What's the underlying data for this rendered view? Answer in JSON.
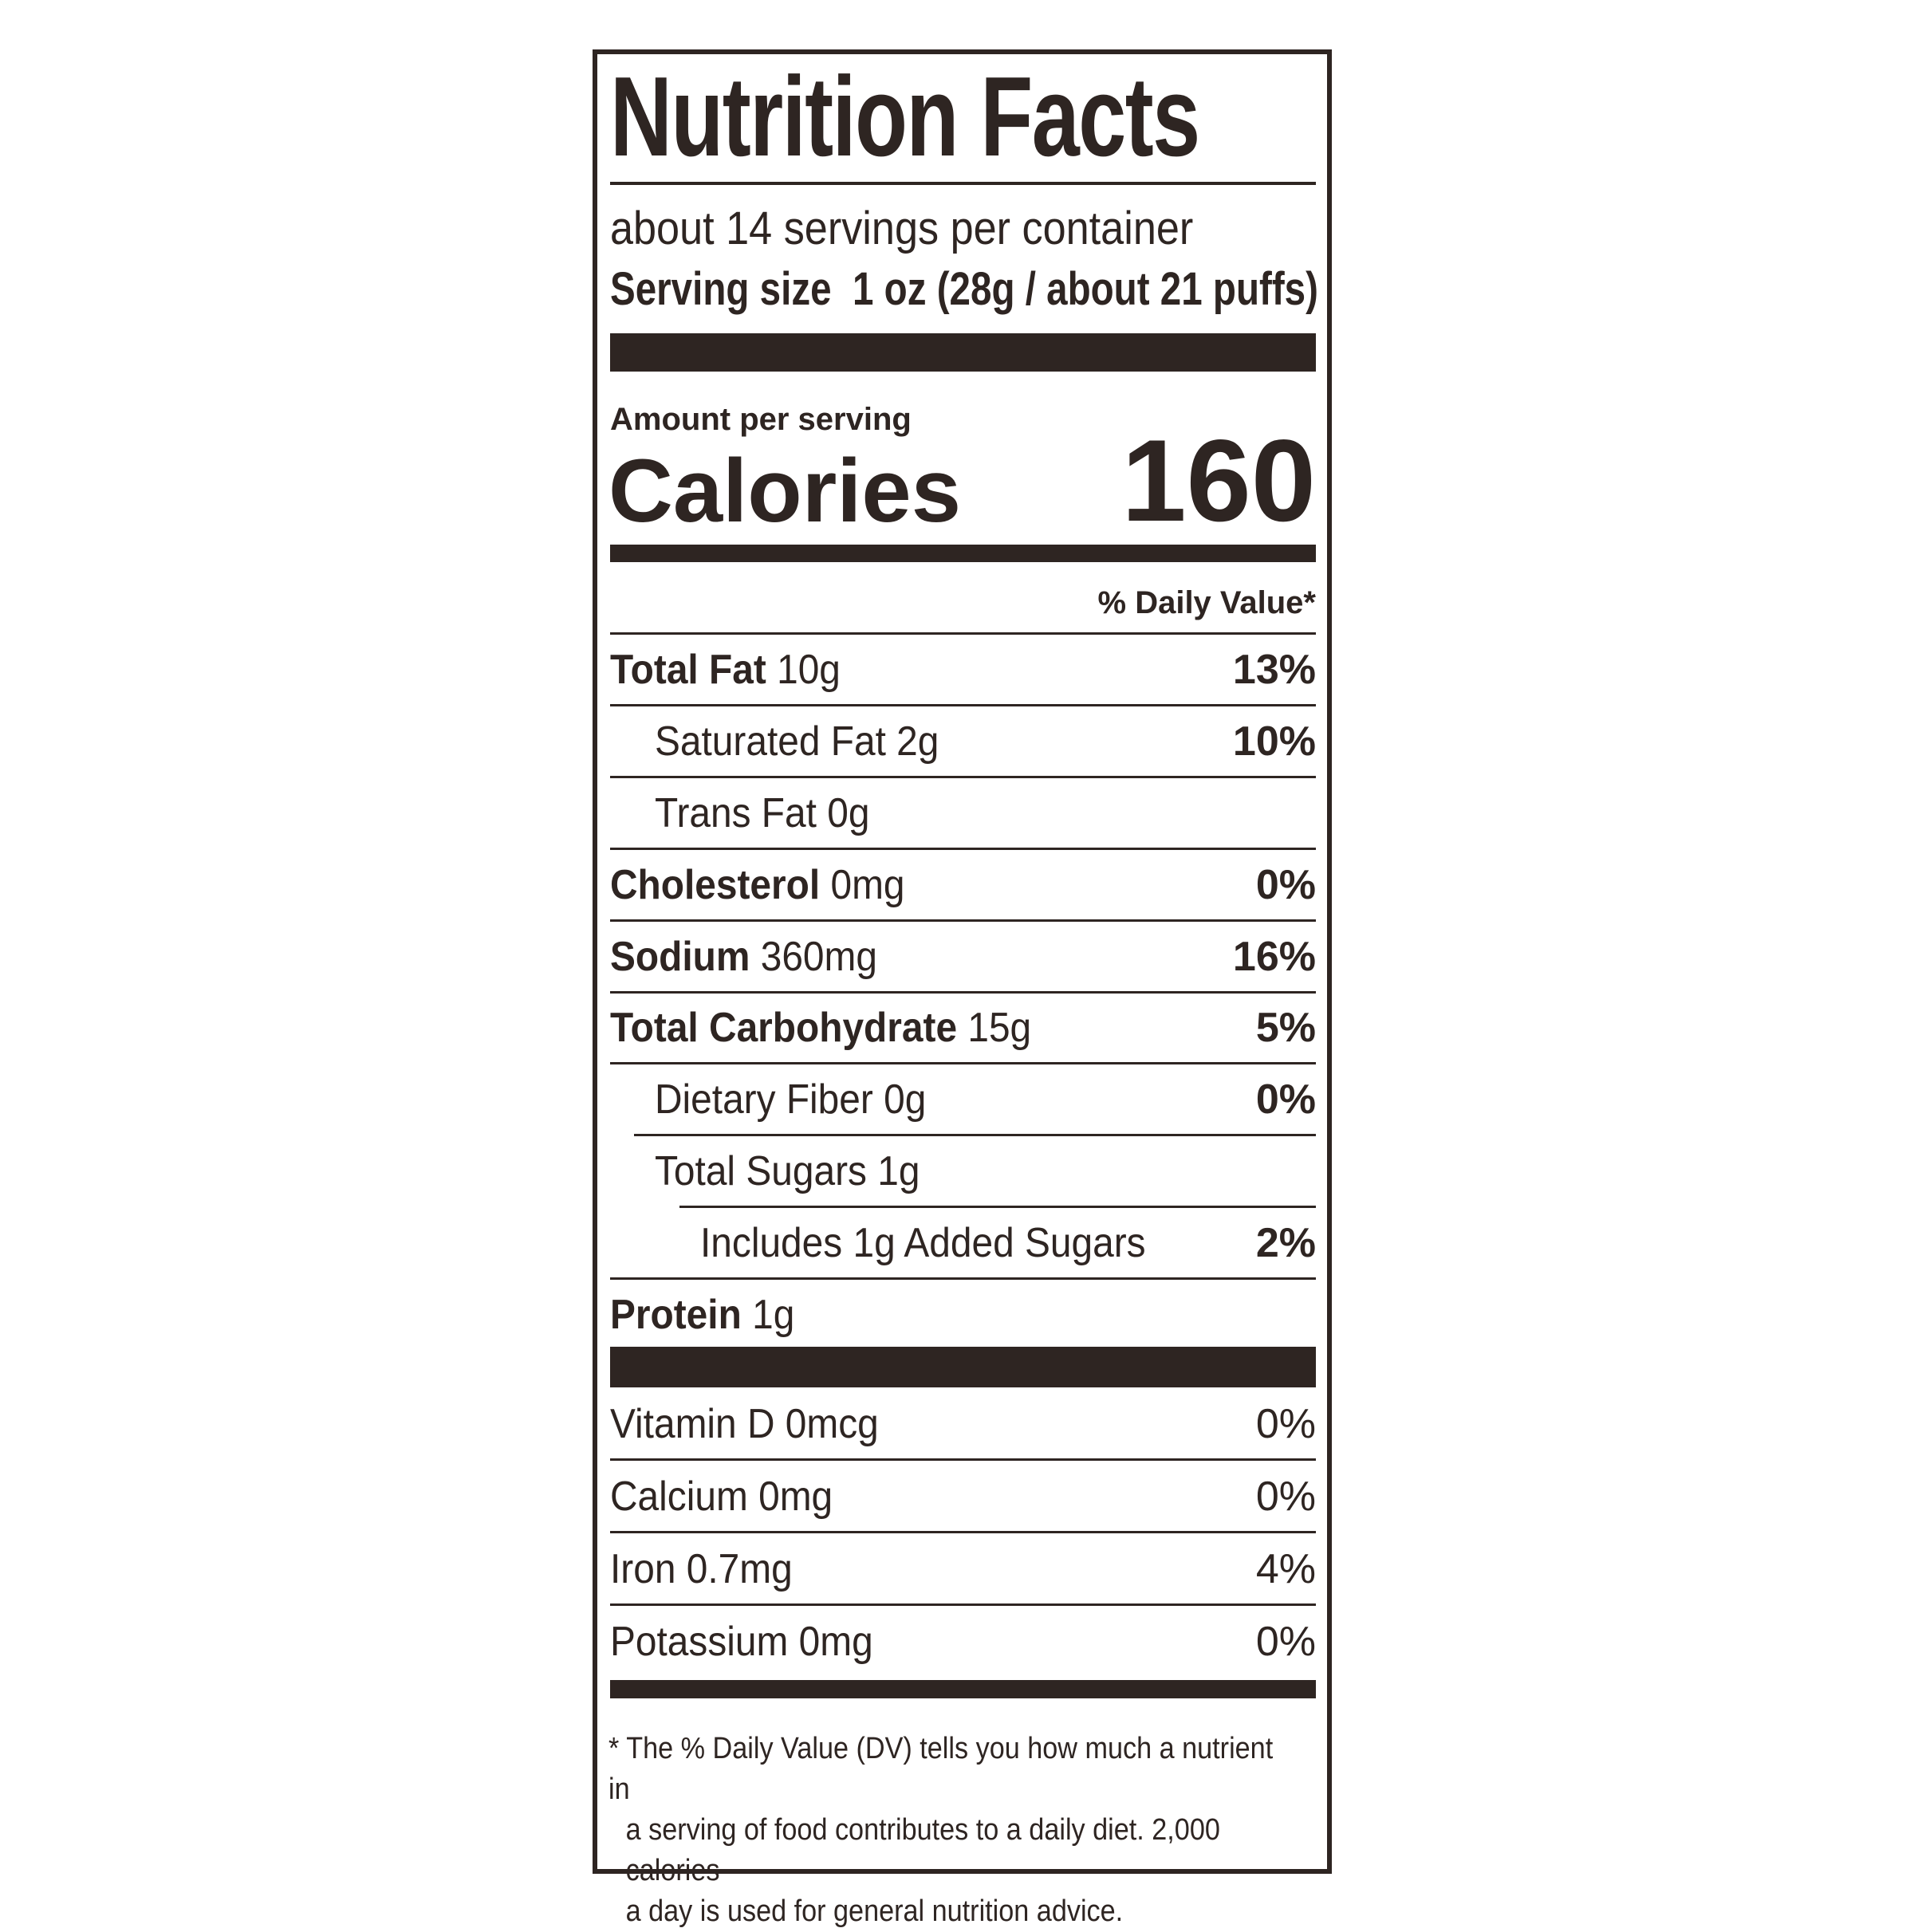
{
  "title": "Nutrition Facts",
  "servings_per_container": "about 14 servings per container",
  "serving_size_label": "Serving size",
  "serving_size_value": "1 oz (28g / about 21 puffs)",
  "amount_per_serving": "Amount per serving",
  "calories_label": "Calories",
  "calories_value": "160",
  "daily_value_header": "% Daily Value*",
  "nutrients": [
    {
      "name": "Total Fat",
      "amount": "10g",
      "dv": "13%",
      "bold": true,
      "indent": 0
    },
    {
      "name": "Saturated Fat",
      "amount": "2g",
      "dv": "10%",
      "bold": false,
      "indent": 1
    },
    {
      "name": "Trans Fat",
      "amount": "0g",
      "dv": "",
      "bold": false,
      "indent": 1
    },
    {
      "name": "Cholesterol",
      "amount": "0mg",
      "dv": "0%",
      "bold": true,
      "indent": 0
    },
    {
      "name": "Sodium",
      "amount": "360mg",
      "dv": "16%",
      "bold": true,
      "indent": 0
    },
    {
      "name": "Total Carbohydrate",
      "amount": "15g",
      "dv": "5%",
      "bold": true,
      "indent": 0
    },
    {
      "name": "Dietary Fiber",
      "amount": "0g",
      "dv": "0%",
      "bold": false,
      "indent": 1
    },
    {
      "name": "Total Sugars",
      "amount": "1g",
      "dv": "",
      "bold": false,
      "indent": 1
    },
    {
      "name": "Includes 1g Added Sugars",
      "amount": "",
      "dv": "2%",
      "bold": false,
      "indent": 2
    },
    {
      "name": "Protein",
      "amount": "1g",
      "dv": "",
      "bold": true,
      "indent": 0
    }
  ],
  "vitamins": [
    {
      "name": "Vitamin D",
      "amount": "0mcg",
      "dv": "0%"
    },
    {
      "name": "Calcium",
      "amount": "0mg",
      "dv": "0%"
    },
    {
      "name": "Iron",
      "amount": "0.7mg",
      "dv": "4%"
    },
    {
      "name": "Potassium",
      "amount": "0mg",
      "dv": "0%"
    }
  ],
  "footnote": {
    "line1": "* The % Daily Value (DV) tells you how much a nutrient in",
    "line2": "a serving of food contributes to a daily diet. 2,000 calories",
    "line3": "a day is used for general nutrition advice."
  }
}
